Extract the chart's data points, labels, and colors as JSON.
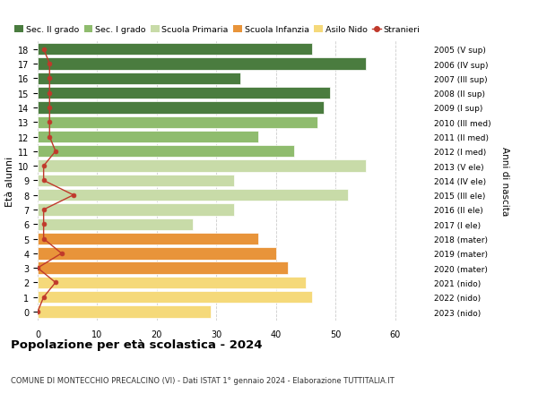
{
  "ages": [
    0,
    1,
    2,
    3,
    4,
    5,
    6,
    7,
    8,
    9,
    10,
    11,
    12,
    13,
    14,
    15,
    16,
    17,
    18
  ],
  "years": [
    "2023 (nido)",
    "2022 (nido)",
    "2021 (nido)",
    "2020 (mater)",
    "2019 (mater)",
    "2018 (mater)",
    "2017 (I ele)",
    "2016 (II ele)",
    "2015 (III ele)",
    "2014 (IV ele)",
    "2013 (V ele)",
    "2012 (I med)",
    "2011 (II med)",
    "2010 (III med)",
    "2009 (I sup)",
    "2008 (II sup)",
    "2007 (III sup)",
    "2006 (IV sup)",
    "2005 (V sup)"
  ],
  "bar_values": [
    29,
    46,
    45,
    42,
    40,
    37,
    26,
    33,
    52,
    33,
    55,
    43,
    37,
    47,
    48,
    49,
    34,
    55,
    46
  ],
  "stranieri_values": [
    0,
    1,
    3,
    0,
    4,
    1,
    1,
    1,
    6,
    1,
    1,
    3,
    2,
    2,
    2,
    2,
    2,
    2,
    1
  ],
  "bar_colors": [
    "#f5d97a",
    "#f5d97a",
    "#f5d97a",
    "#e8943a",
    "#e8943a",
    "#e8943a",
    "#c8dba8",
    "#c8dba8",
    "#c8dba8",
    "#c8dba8",
    "#c8dba8",
    "#8fbc6e",
    "#8fbc6e",
    "#8fbc6e",
    "#4a7c3f",
    "#4a7c3f",
    "#4a7c3f",
    "#4a7c3f",
    "#4a7c3f"
  ],
  "legend_labels": [
    "Sec. II grado",
    "Sec. I grado",
    "Scuola Primaria",
    "Scuola Infanzia",
    "Asilo Nido",
    "Stranieri"
  ],
  "legend_colors": [
    "#4a7c3f",
    "#8fbc6e",
    "#c8dba8",
    "#e8943a",
    "#f5d97a",
    "#c0392b"
  ],
  "stranieri_color": "#c0392b",
  "title": "Popolazione per età scolastica - 2024",
  "subtitle": "COMUNE DI MONTECCHIO PRECALCINO (VI) - Dati ISTAT 1° gennaio 2024 - Elaborazione TUTTITALIA.IT",
  "ylabel_left": "Età alunni",
  "ylabel_right": "Anni di nascita",
  "xlim": [
    0,
    65
  ],
  "xticks": [
    0,
    10,
    20,
    30,
    40,
    50,
    60
  ],
  "background_color": "#ffffff",
  "bar_height": 0.82,
  "grid_color": "#cccccc"
}
